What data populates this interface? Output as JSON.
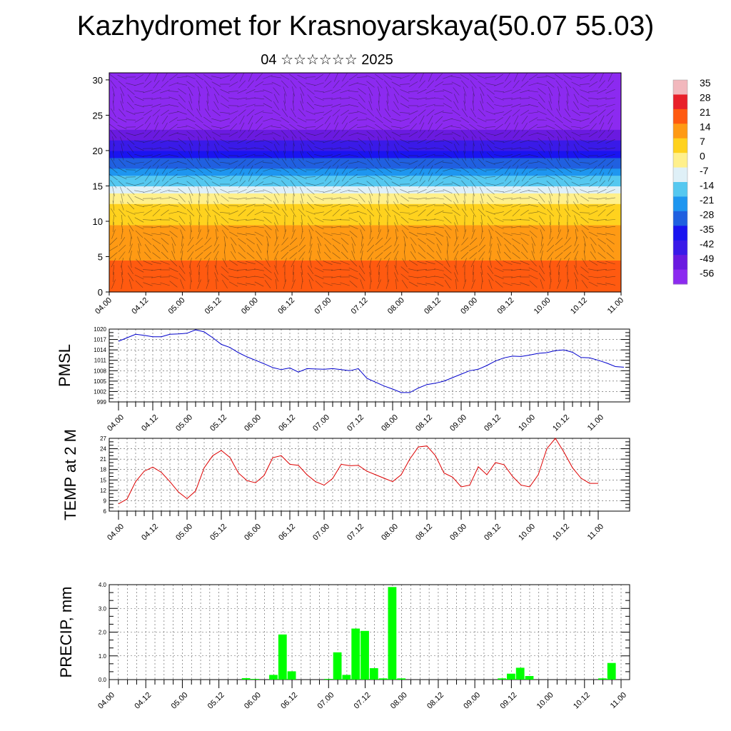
{
  "header": {
    "title": "Kazhydromet for Krasnoyarskaya(50.07 55.03)",
    "subtitle": "04 ☆☆☆☆☆☆ 2025"
  },
  "chart_data": [
    {
      "type": "heatmap",
      "title": "",
      "xlabel": "",
      "ylabel": "",
      "x_ticks": [
        "04.00",
        "04.12",
        "05.00",
        "05.12",
        "06.00",
        "06.12",
        "07.00",
        "07.12",
        "08.00",
        "08.12",
        "09.00",
        "09.12",
        "10.00",
        "10.12",
        "11.00"
      ],
      "y_ticks": [
        0,
        5,
        10,
        15,
        20,
        25,
        30
      ],
      "ylim": [
        0,
        31
      ],
      "colorbar": {
        "labels": [
          35,
          28,
          21,
          14,
          7,
          0,
          -7,
          -14,
          -21,
          -28,
          -35,
          -42,
          -49,
          -56
        ],
        "colors": [
          "#f2b8bd",
          "#e8202a",
          "#ff5a10",
          "#ff9a14",
          "#ffd21e",
          "#fff08c",
          "#dff0f7",
          "#55c8f0",
          "#1e96f0",
          "#2060e0",
          "#1a14f0",
          "#3a1ae8",
          "#6a1ae0",
          "#8c2af0"
        ]
      },
      "value_profile_by_height": [
        {
          "h": 0,
          "value": 21
        },
        {
          "h": 5,
          "value": 17
        },
        {
          "h": 10,
          "value": 10
        },
        {
          "h": 13,
          "value": 2
        },
        {
          "h": 15,
          "value": -10
        },
        {
          "h": 17,
          "value": -20
        },
        {
          "h": 20,
          "value": -38
        },
        {
          "h": 23,
          "value": -53
        },
        {
          "h": 25,
          "value": -57
        },
        {
          "h": 28,
          "value": -54
        },
        {
          "h": 31,
          "value": -56
        }
      ],
      "overlay": "wind barbs"
    },
    {
      "type": "line",
      "ylabel": "PMSL",
      "ylim": [
        999,
        1020
      ],
      "y_ticks": [
        999,
        1002,
        1005,
        1008,
        1011,
        1014,
        1017,
        1020
      ],
      "x_ticks": [
        "04.00",
        "04.12",
        "05.00",
        "05.12",
        "06.00",
        "06.12",
        "07.00",
        "07.12",
        "08.00",
        "08.12",
        "09.00",
        "09.12",
        "10.00",
        "10.12",
        "11.00"
      ],
      "x_step_hours": 3,
      "series": [
        {
          "color": "#0000cc",
          "values": [
            1016.5,
            1017.5,
            1018.5,
            1018.2,
            1017.8,
            1017.8,
            1018.5,
            1018.6,
            1018.8,
            1019.8,
            1019.2,
            1017.5,
            1015.6,
            1014.7,
            1013.2,
            1012,
            1011,
            1010,
            1008.9,
            1008.3,
            1008.8,
            1007.6,
            1008.6,
            1008.5,
            1008.4,
            1008.6,
            1008.3,
            1008,
            1008.6,
            1005.8,
            1004.7,
            1003.6,
            1002.7,
            1001.7,
            1001.7,
            1003,
            1004,
            1004.4,
            1005,
            1006,
            1007,
            1008,
            1008.4,
            1009.5,
            1010.8,
            1011.7,
            1012.2,
            1012.1,
            1012.5,
            1013,
            1013.2,
            1013.8,
            1014,
            1013.3,
            1011.8,
            1011.7,
            1011,
            1010.2,
            1009.2,
            1009
          ]
        }
      ]
    },
    {
      "type": "line",
      "ylabel": "TEMP at 2 M",
      "ylim": [
        6,
        27
      ],
      "y_ticks": [
        6,
        9,
        12,
        15,
        18,
        21,
        24,
        27
      ],
      "x_ticks": [
        "04.00",
        "04.12",
        "05.00",
        "05.12",
        "06.00",
        "06.12",
        "07.00",
        "07.12",
        "08.00",
        "08.12",
        "09.00",
        "09.12",
        "10.00",
        "10.12",
        "11.00"
      ],
      "x_step_hours": 3,
      "series": [
        {
          "color": "#dd0000",
          "values": [
            8.1,
            9.5,
            14.5,
            17.5,
            18.7,
            17.2,
            14.5,
            11.5,
            9.6,
            11.8,
            18.5,
            22,
            23.5,
            21.5,
            17,
            14.8,
            14.2,
            16.3,
            21.4,
            22,
            19.5,
            19.2,
            16.5,
            14.5,
            13.5,
            15.4,
            19.5,
            19.1,
            19.2,
            17.5,
            16.5,
            15.5,
            14.5,
            16.5,
            21,
            24.5,
            24.8,
            22,
            17,
            15.8,
            13,
            13.5,
            18.8,
            16.5,
            20,
            19.4,
            16,
            13.5,
            13,
            16.5,
            24,
            27,
            23,
            18.5,
            15.5,
            14,
            14
          ]
        }
      ]
    },
    {
      "type": "bar",
      "ylabel": "PRECIP, mm",
      "ylim": [
        0,
        4
      ],
      "y_ticks": [
        "0.0",
        "1.0",
        "2.0",
        "3.0",
        "4.0"
      ],
      "x_ticks": [
        "04.00",
        "04.12",
        "05.00",
        "05.12",
        "06.00",
        "06.12",
        "07.00",
        "07.12",
        "08.00",
        "08.12",
        "09.00",
        "09.12",
        "10.00",
        "10.12",
        "11.00"
      ],
      "x_step_hours": 3,
      "series": [
        {
          "color": "#00ff00",
          "values": [
            0,
            0,
            0,
            0,
            0,
            0,
            0,
            0,
            0,
            0,
            0,
            0,
            0,
            0,
            0,
            0.06,
            0.03,
            0,
            0.2,
            1.9,
            0.35,
            0,
            0,
            0,
            0.03,
            1.15,
            0.2,
            2.15,
            2.05,
            0.48,
            0.05,
            3.9,
            0.05,
            0,
            0,
            0,
            0,
            0,
            0,
            0,
            0,
            0,
            0,
            0.05,
            0.25,
            0.5,
            0.15,
            0,
            0,
            0,
            0,
            0,
            0,
            0,
            0.05,
            0.7,
            0
          ]
        }
      ]
    }
  ]
}
